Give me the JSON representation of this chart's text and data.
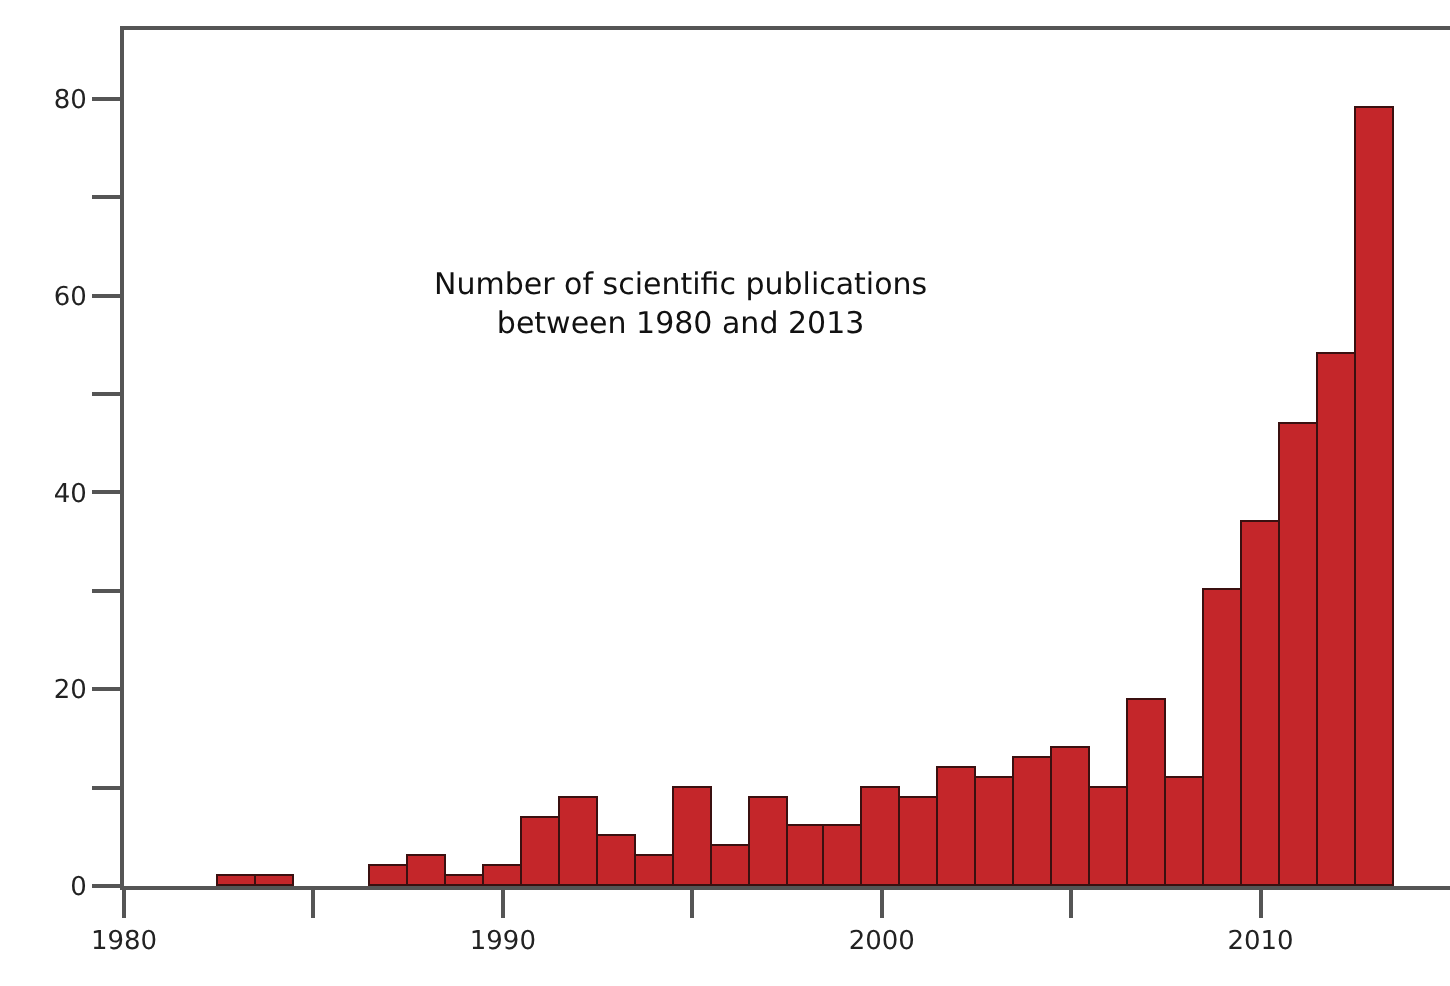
{
  "chart_data": {
    "type": "histogram",
    "bins": [
      1982.5,
      1983.5,
      1984.5,
      1985.5,
      1986.5,
      1987.5,
      1988.5,
      1989.5,
      1990.5,
      1991.5,
      1992.5,
      1993.5,
      1994.5,
      1995.5,
      1996.5,
      1997.5,
      1998.5,
      1999.5,
      2000.5,
      2001.5,
      2002.5,
      2003.5,
      2004.5,
      2005.5,
      2006.5,
      2007.5,
      2008.5,
      2009.5,
      2010.5,
      2011.5,
      2012.5,
      2013.5
    ],
    "values": [
      1,
      1,
      0,
      0,
      2,
      3,
      1,
      2,
      7,
      9,
      5,
      3,
      10,
      4,
      9,
      6,
      6,
      10,
      9,
      12,
      11,
      13,
      14,
      10,
      19,
      11,
      30,
      37,
      47,
      54,
      79
    ],
    "color": "#c4262a",
    "xlim": [
      1980,
      2015
    ],
    "ylim": [
      0,
      87
    ],
    "xticks": [
      1980,
      {
        "value": 1985,
        "label": null
      },
      1990,
      {
        "value": 1995,
        "label": null
      },
      2000,
      {
        "value": 2005,
        "label": null
      },
      2010
    ],
    "yticks": [
      0,
      {
        "value": 10,
        "label": null
      },
      20,
      {
        "value": 30,
        "label": null
      },
      40,
      {
        "value": 50,
        "label": null
      },
      60,
      {
        "value": 70,
        "label": null
      },
      80
    ],
    "annotations": [
      "Number of scientific publications\nbetween 1980 and 2013"
    ]
  }
}
